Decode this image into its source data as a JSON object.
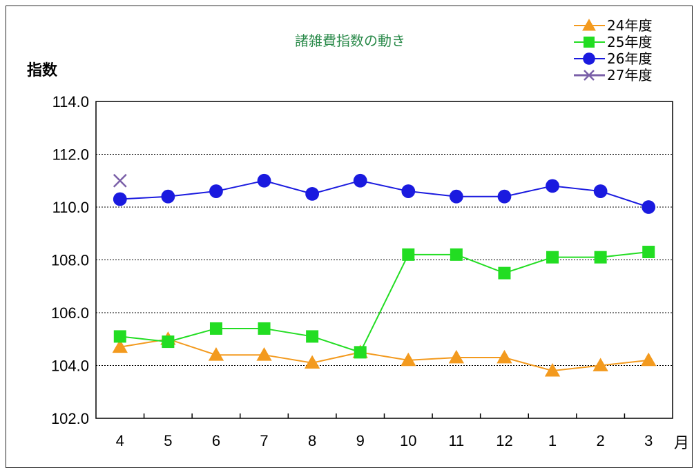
{
  "chart_data": {
    "type": "line",
    "title": "諸雑費指数の動き",
    "ylabel": "指数",
    "xunit": "月",
    "categories": [
      "4",
      "5",
      "6",
      "7",
      "8",
      "9",
      "10",
      "11",
      "12",
      "1",
      "2",
      "3"
    ],
    "ylim": [
      102.0,
      114.0
    ],
    "yticks": [
      "102.0",
      "104.0",
      "106.0",
      "108.0",
      "110.0",
      "112.0",
      "114.0"
    ],
    "grid": "horizontal-dashed",
    "legend_position": "top-right",
    "series": [
      {
        "name": "24年度",
        "color": "#f39a1e",
        "marker": "triangle",
        "values": [
          104.7,
          105.0,
          104.4,
          104.4,
          104.1,
          104.5,
          104.2,
          104.3,
          104.3,
          103.8,
          104.0,
          104.2
        ]
      },
      {
        "name": "25年度",
        "color": "#22dd22",
        "marker": "square",
        "values": [
          105.1,
          104.9,
          105.4,
          105.4,
          105.1,
          104.5,
          108.2,
          108.2,
          107.5,
          108.1,
          108.1,
          108.3
        ]
      },
      {
        "name": "26年度",
        "color": "#1a1adf",
        "marker": "circle",
        "values": [
          110.3,
          110.4,
          110.6,
          111.0,
          110.5,
          111.0,
          110.6,
          110.4,
          110.4,
          110.8,
          110.6,
          110.0
        ]
      },
      {
        "name": "27年度",
        "color": "#7a5fa8",
        "marker": "x",
        "values": [
          111.0,
          null,
          null,
          null,
          null,
          null,
          null,
          null,
          null,
          null,
          null,
          null
        ]
      }
    ]
  }
}
